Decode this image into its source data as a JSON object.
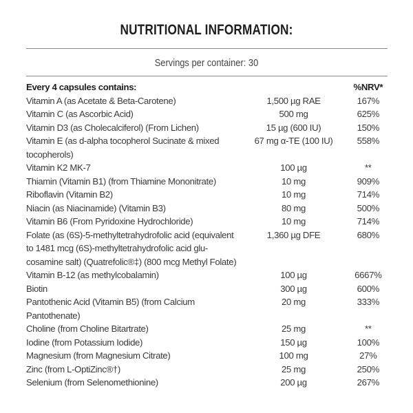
{
  "title": "NUTRITIONAL INFORMATION:",
  "servings": "Servings per container: 30",
  "header": {
    "label": "Every 4 capsules contains:",
    "amount": "",
    "nrv": "%NRV*"
  },
  "rows": [
    {
      "name": "Vitamin A (as Acetate & Beta-Carotene)",
      "amount": "1,500 µg RAE",
      "nrv": "167%"
    },
    {
      "name": "Vitamin C (as Ascorbic Acid)",
      "amount": "500 mg",
      "nrv": "625%"
    },
    {
      "name": "Vitamin D3 (as Cholecalciferol) (From Lichen)",
      "amount": "15 µg (600 IU)",
      "nrv": "150%"
    },
    {
      "name": "Vitamin E (as d-alpha tocopherol Sucinate & mixed tocopherols)",
      "amount": "67 mg α-TE (100 IU)",
      "nrv": "558%"
    },
    {
      "name": "Vitamin K2 MK-7",
      "amount": "100 µg",
      "nrv": "**"
    },
    {
      "name": "Thiamin (Vitamin B1) (from Thiamine Mononitrate)",
      "amount": "10 mg",
      "nrv": "909%"
    },
    {
      "name": "Riboflavin (Vitamin B2)",
      "amount": "10 mg",
      "nrv": "714%"
    },
    {
      "name": "Niacin (as Niacinamide) (Vitamin B3)",
      "amount": "80 mg",
      "nrv": "500%"
    },
    {
      "name": "Vitamin B6 (From Pyridoxine Hydrochloride)",
      "amount": "10 mg",
      "nrv": "714%"
    },
    {
      "name": "Folate (as (6S)-5-methyltetrahydrofolic acid (equivalent to 1481 mcg (6S)-methyltetrahydrofolic acid glu-cosamine salt) (Quatrefolic®‡) (800 mcg Methyl Folate)",
      "amount": "1,360 µg DFE",
      "nrv": "680%"
    },
    {
      "name": "Vitamin B-12 (as methylcobalamin)",
      "amount": "100 µg",
      "nrv": "6667%"
    },
    {
      "name": "Biotin",
      "amount": "300 µg",
      "nrv": "600%"
    },
    {
      "name": "Pantothenic Acid (Vitamin B5) (from Calcium Pantothenate)",
      "amount": "20 mg",
      "nrv": "333%"
    },
    {
      "name": "Choline (from Choline Bitartrate)",
      "amount": "25 mg",
      "nrv": "**"
    },
    {
      "name": "Iodine (from Potassium Iodide)",
      "amount": "150 µg",
      "nrv": "100%"
    },
    {
      "name": "Magnesium (from Magnesium Citrate)",
      "amount": "100 mg",
      "nrv": "27%"
    },
    {
      "name": "Zinc (from L-OptiZinc®†)",
      "amount": "25 mg",
      "nrv": "250%"
    },
    {
      "name": "Selenium (from Selenomethionine)",
      "amount": "200 µg",
      "nrv": "267%"
    }
  ]
}
